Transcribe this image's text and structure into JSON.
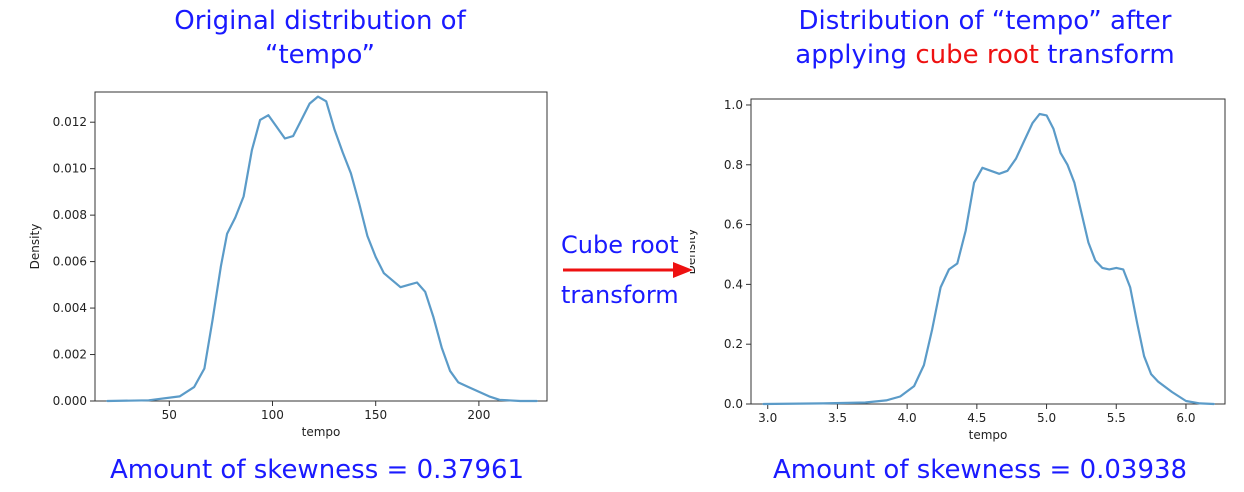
{
  "left": {
    "title_line1": "Original distribution of",
    "title_line2": "“tempo”",
    "skewness_text": "Amount of skewness = 0.37961"
  },
  "right": {
    "title_line1": "Distribution of “tempo” after",
    "title_line2_pre": "applying ",
    "title_line2_highlight": "cube root",
    "title_line2_post": " transform",
    "skewness_text": "Amount of skewness = 0.03938"
  },
  "arrow": {
    "label_top": "Cube root",
    "label_bottom": "transform",
    "color": "#ee1111"
  },
  "colors": {
    "title": "#1a1aff",
    "highlight": "#ee1111",
    "line": "#5b9bc8"
  },
  "chart_data": [
    {
      "type": "line",
      "title": "",
      "xlabel": "tempo",
      "ylabel": "Density",
      "xlim": [
        14,
        233
      ],
      "ylim": [
        0,
        0.0133
      ],
      "xticks": [
        50,
        100,
        150,
        200
      ],
      "xtick_labels": [
        "50",
        "100",
        "150",
        "200"
      ],
      "yticks": [
        0,
        0.002,
        0.004,
        0.006,
        0.008,
        0.01,
        0.012
      ],
      "ytick_labels": [
        "0.000",
        "0.002",
        "0.004",
        "0.006",
        "0.008",
        "0.010",
        "0.012"
      ],
      "series": [
        {
          "x": [
            20,
            40,
            55,
            62,
            67,
            71,
            75,
            78,
            82,
            86,
            90,
            94,
            98,
            102,
            106,
            110,
            114,
            118,
            122,
            126,
            130,
            134,
            138,
            142,
            146,
            150,
            154,
            158,
            162,
            166,
            170,
            174,
            178,
            182,
            186,
            190,
            195,
            200,
            205,
            210,
            220,
            228
          ],
          "y": [
            0,
            3e-05,
            0.0002,
            0.0006,
            0.0014,
            0.0035,
            0.0058,
            0.0072,
            0.0079,
            0.0088,
            0.0108,
            0.0121,
            0.0123,
            0.0118,
            0.0113,
            0.0114,
            0.0121,
            0.0128,
            0.0131,
            0.0129,
            0.0117,
            0.0107,
            0.0098,
            0.0085,
            0.0071,
            0.0062,
            0.0055,
            0.0052,
            0.0049,
            0.005,
            0.0051,
            0.0047,
            0.0036,
            0.0023,
            0.0013,
            0.0008,
            0.0006,
            0.0004,
            0.0002,
            5e-05,
            0,
            0
          ]
        }
      ]
    },
    {
      "type": "line",
      "title": "",
      "xlabel": "tempo",
      "ylabel": "Density",
      "xlim": [
        2.88,
        6.28
      ],
      "ylim": [
        0,
        1.02
      ],
      "xticks": [
        3.0,
        3.5,
        4.0,
        4.5,
        5.0,
        5.5,
        6.0
      ],
      "xtick_labels": [
        "3.0",
        "3.5",
        "4.0",
        "4.5",
        "5.0",
        "5.5",
        "6.0"
      ],
      "yticks": [
        0,
        0.2,
        0.4,
        0.6,
        0.8,
        1.0
      ],
      "ytick_labels": [
        "0.0",
        "0.2",
        "0.4",
        "0.6",
        "0.8",
        "1.0"
      ],
      "series": [
        {
          "x": [
            2.97,
            3.4,
            3.7,
            3.85,
            3.95,
            4.05,
            4.12,
            4.18,
            4.24,
            4.3,
            4.36,
            4.42,
            4.48,
            4.54,
            4.6,
            4.66,
            4.72,
            4.78,
            4.84,
            4.9,
            4.95,
            5.0,
            5.05,
            5.1,
            5.15,
            5.2,
            5.25,
            5.3,
            5.35,
            5.4,
            5.45,
            5.5,
            5.55,
            5.6,
            5.65,
            5.7,
            5.75,
            5.8,
            5.9,
            6.0,
            6.1,
            6.2
          ],
          "y": [
            0,
            0.002,
            0.005,
            0.012,
            0.025,
            0.06,
            0.13,
            0.25,
            0.39,
            0.45,
            0.47,
            0.58,
            0.74,
            0.79,
            0.78,
            0.77,
            0.78,
            0.82,
            0.88,
            0.94,
            0.97,
            0.965,
            0.92,
            0.84,
            0.8,
            0.74,
            0.64,
            0.54,
            0.48,
            0.455,
            0.45,
            0.455,
            0.45,
            0.39,
            0.27,
            0.16,
            0.1,
            0.075,
            0.04,
            0.01,
            0.002,
            0
          ]
        }
      ]
    }
  ]
}
